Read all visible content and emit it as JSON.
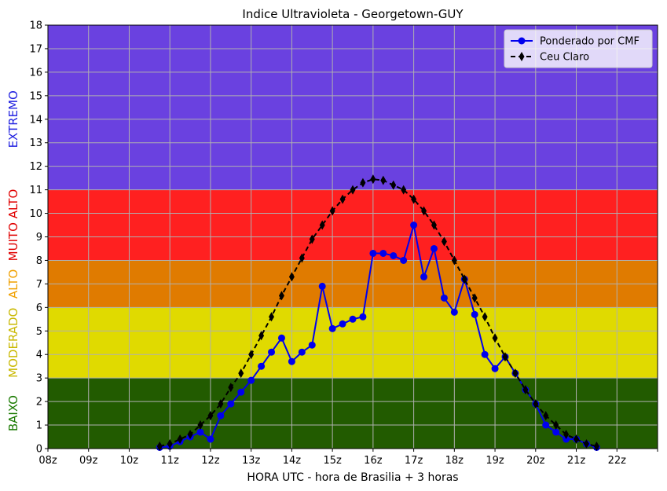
{
  "chart_data": {
    "type": "line",
    "title": "Indice Ultravioleta - Georgetown-GUY",
    "xlabel": "HORA UTC - hora de Brasilia + 3 horas",
    "ylabel": "",
    "xlim": [
      8,
      23
    ],
    "ylim": [
      0,
      18
    ],
    "x_ticks": [
      "08z",
      "09z",
      "10z",
      "11z",
      "12z",
      "13z",
      "14z",
      "15z",
      "16z",
      "17z",
      "18z",
      "19z",
      "20z",
      "21z",
      "22z",
      ""
    ],
    "y_ticks": [
      "0",
      "1",
      "2",
      "3",
      "4",
      "5",
      "6",
      "7",
      "8",
      "9",
      "10",
      "11",
      "12",
      "13",
      "14",
      "15",
      "16",
      "17",
      "18"
    ],
    "grid": true,
    "legend_position": "top-right",
    "bands": [
      {
        "label": "BAIXO",
        "from": 0,
        "to": 3,
        "color": "#225b00",
        "label_color": "#1a7a00"
      },
      {
        "label": "MODERADO",
        "from": 3,
        "to": 6,
        "color": "#e0da00",
        "label_color": "#c9b800"
      },
      {
        "label": "ALTO",
        "from": 6,
        "to": 8,
        "color": "#e07b00",
        "label_color": "#f0a000"
      },
      {
        "label": "MUITO ALTO",
        "from": 8,
        "to": 11,
        "color": "#ff2020",
        "label_color": "#e00000"
      },
      {
        "label": "EXTREMO",
        "from": 11,
        "to": 18,
        "color": "#6a41e0",
        "label_color": "#2020e0"
      }
    ],
    "series": [
      {
        "name": "Ponderado por CMF",
        "color": "#0000ee",
        "marker": "circle",
        "line": "solid",
        "x": [
          10.75,
          11.0,
          11.25,
          11.5,
          11.75,
          12.0,
          12.25,
          12.5,
          12.75,
          13.0,
          13.25,
          13.5,
          13.75,
          14.0,
          14.25,
          14.5,
          14.75,
          15.0,
          15.25,
          15.5,
          15.75,
          16.0,
          16.25,
          16.5,
          16.75,
          17.0,
          17.25,
          17.5,
          17.75,
          18.0,
          18.25,
          18.5,
          18.75,
          19.0,
          19.25,
          19.5,
          19.75,
          20.0,
          20.25,
          20.5,
          20.75,
          21.0,
          21.25,
          21.5
        ],
        "y": [
          0.05,
          0.1,
          0.3,
          0.5,
          0.7,
          0.4,
          1.4,
          1.9,
          2.4,
          2.9,
          3.5,
          4.1,
          4.7,
          3.7,
          4.1,
          4.4,
          6.9,
          5.1,
          5.3,
          5.5,
          5.6,
          8.3,
          8.3,
          8.2,
          8.0,
          9.5,
          7.3,
          8.5,
          6.4,
          5.8,
          7.2,
          5.7,
          4.0,
          3.4,
          3.9,
          3.2,
          2.5,
          1.9,
          1.0,
          0.7,
          0.4,
          0.4,
          0.2,
          0.05
        ]
      },
      {
        "name": "Ceu Claro",
        "color": "#000000",
        "marker": "diamond",
        "line": "dashed",
        "x": [
          10.75,
          11.0,
          11.25,
          11.5,
          11.75,
          12.0,
          12.25,
          12.5,
          12.75,
          13.0,
          13.25,
          13.5,
          13.75,
          14.0,
          14.25,
          14.5,
          14.75,
          15.0,
          15.25,
          15.5,
          15.75,
          16.0,
          16.25,
          16.5,
          16.75,
          17.0,
          17.25,
          17.5,
          17.75,
          18.0,
          18.25,
          18.5,
          18.75,
          19.0,
          19.25,
          19.5,
          19.75,
          20.0,
          20.25,
          20.5,
          20.75,
          21.0,
          21.25,
          21.5
        ],
        "y": [
          0.1,
          0.2,
          0.4,
          0.6,
          1.0,
          1.4,
          1.9,
          2.6,
          3.2,
          4.0,
          4.8,
          5.6,
          6.5,
          7.3,
          8.1,
          8.9,
          9.5,
          10.1,
          10.6,
          11.0,
          11.3,
          11.45,
          11.4,
          11.2,
          11.0,
          10.6,
          10.1,
          9.5,
          8.8,
          8.0,
          7.2,
          6.4,
          5.6,
          4.7,
          3.9,
          3.2,
          2.5,
          1.9,
          1.4,
          1.0,
          0.6,
          0.4,
          0.2,
          0.1
        ]
      }
    ]
  }
}
